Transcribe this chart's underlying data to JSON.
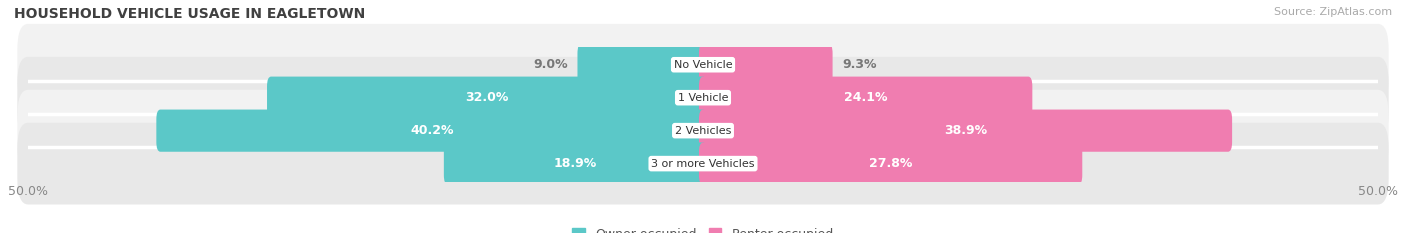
{
  "title": "HOUSEHOLD VEHICLE USAGE IN EAGLETOWN",
  "source": "Source: ZipAtlas.com",
  "categories": [
    "No Vehicle",
    "1 Vehicle",
    "2 Vehicles",
    "3 or more Vehicles"
  ],
  "owner_values": [
    9.0,
    32.0,
    40.2,
    18.9
  ],
  "renter_values": [
    9.3,
    24.1,
    38.9,
    27.8
  ],
  "owner_color": "#5bc8c8",
  "renter_color": "#f07db0",
  "row_bg_color_even": "#f2f2f2",
  "row_bg_color_odd": "#e8e8e8",
  "xlim": 50.0,
  "title_fontsize": 10,
  "source_fontsize": 8,
  "axis_fontsize": 9,
  "bar_label_fontsize": 9,
  "category_fontsize": 8
}
